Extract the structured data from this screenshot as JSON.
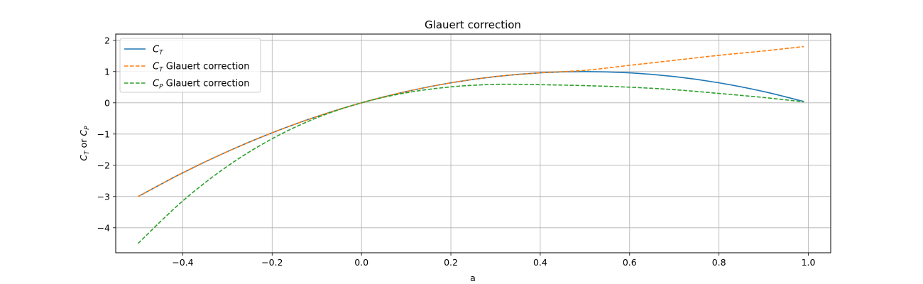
{
  "chart_data": {
    "type": "line",
    "title": "Glauert correction",
    "xlabel": "a",
    "ylabel": {
      "c1": "C",
      "s1": "T",
      "mid": " or ",
      "c2": "C",
      "s2": "P"
    },
    "xlim": [
      -0.55,
      1.05
    ],
    "ylim": [
      -4.8,
      2.2
    ],
    "xticks": [
      -0.4,
      -0.2,
      0.0,
      0.2,
      0.4,
      0.6,
      0.8,
      1.0
    ],
    "xtick_labels": [
      "−0.4",
      "−0.2",
      "0.0",
      "0.2",
      "0.4",
      "0.6",
      "0.8",
      "1.0"
    ],
    "yticks": [
      -4,
      -3,
      -2,
      -1,
      0,
      1,
      2
    ],
    "ytick_labels": [
      "−4",
      "−3",
      "−2",
      "−1",
      "0",
      "1",
      "2"
    ],
    "grid": true,
    "legend_position": "top-left",
    "series": [
      {
        "name": {
          "sym": "C",
          "sub": "T",
          "suffix": ""
        },
        "color": "#1f77b4",
        "style": "solid",
        "x": [
          -0.5,
          -0.4,
          -0.3,
          -0.2,
          -0.1,
          0.0,
          0.1,
          0.2,
          0.3,
          0.4,
          0.5,
          0.6,
          0.7,
          0.8,
          0.9,
          0.99
        ],
        "y": [
          -3.0,
          -2.24,
          -1.56,
          -0.96,
          -0.44,
          0.0,
          0.36,
          0.64,
          0.84,
          0.96,
          1.0,
          0.96,
          0.84,
          0.64,
          0.36,
          0.04
        ]
      },
      {
        "name": {
          "sym": "C",
          "sub": "T",
          "suffix": " Glauert correction"
        },
        "color": "#ff7f0e",
        "style": "dashed",
        "x": [
          -0.5,
          -0.4,
          -0.3,
          -0.2,
          -0.1,
          0.0,
          0.1,
          0.2,
          0.3,
          0.4,
          0.5,
          0.6,
          0.7,
          0.8,
          0.9,
          0.99
        ],
        "y": [
          -3.0,
          -2.24,
          -1.56,
          -0.96,
          -0.44,
          0.0,
          0.36,
          0.64,
          0.84,
          0.96,
          1.04,
          1.2,
          1.36,
          1.52,
          1.66,
          1.8
        ]
      },
      {
        "name": {
          "sym": "C",
          "sub": "P",
          "suffix": " Glauert correction"
        },
        "color": "#2ca02c",
        "style": "dashed",
        "x": [
          -0.5,
          -0.4,
          -0.3,
          -0.2,
          -0.1,
          0.0,
          0.1,
          0.2,
          0.3,
          0.4,
          0.5,
          0.6,
          0.7,
          0.8,
          0.9,
          0.99
        ],
        "y": [
          -4.5,
          -3.14,
          -2.03,
          -1.15,
          -0.48,
          0.0,
          0.32,
          0.51,
          0.59,
          0.58,
          0.55,
          0.5,
          0.42,
          0.3,
          0.17,
          0.03
        ]
      }
    ]
  }
}
